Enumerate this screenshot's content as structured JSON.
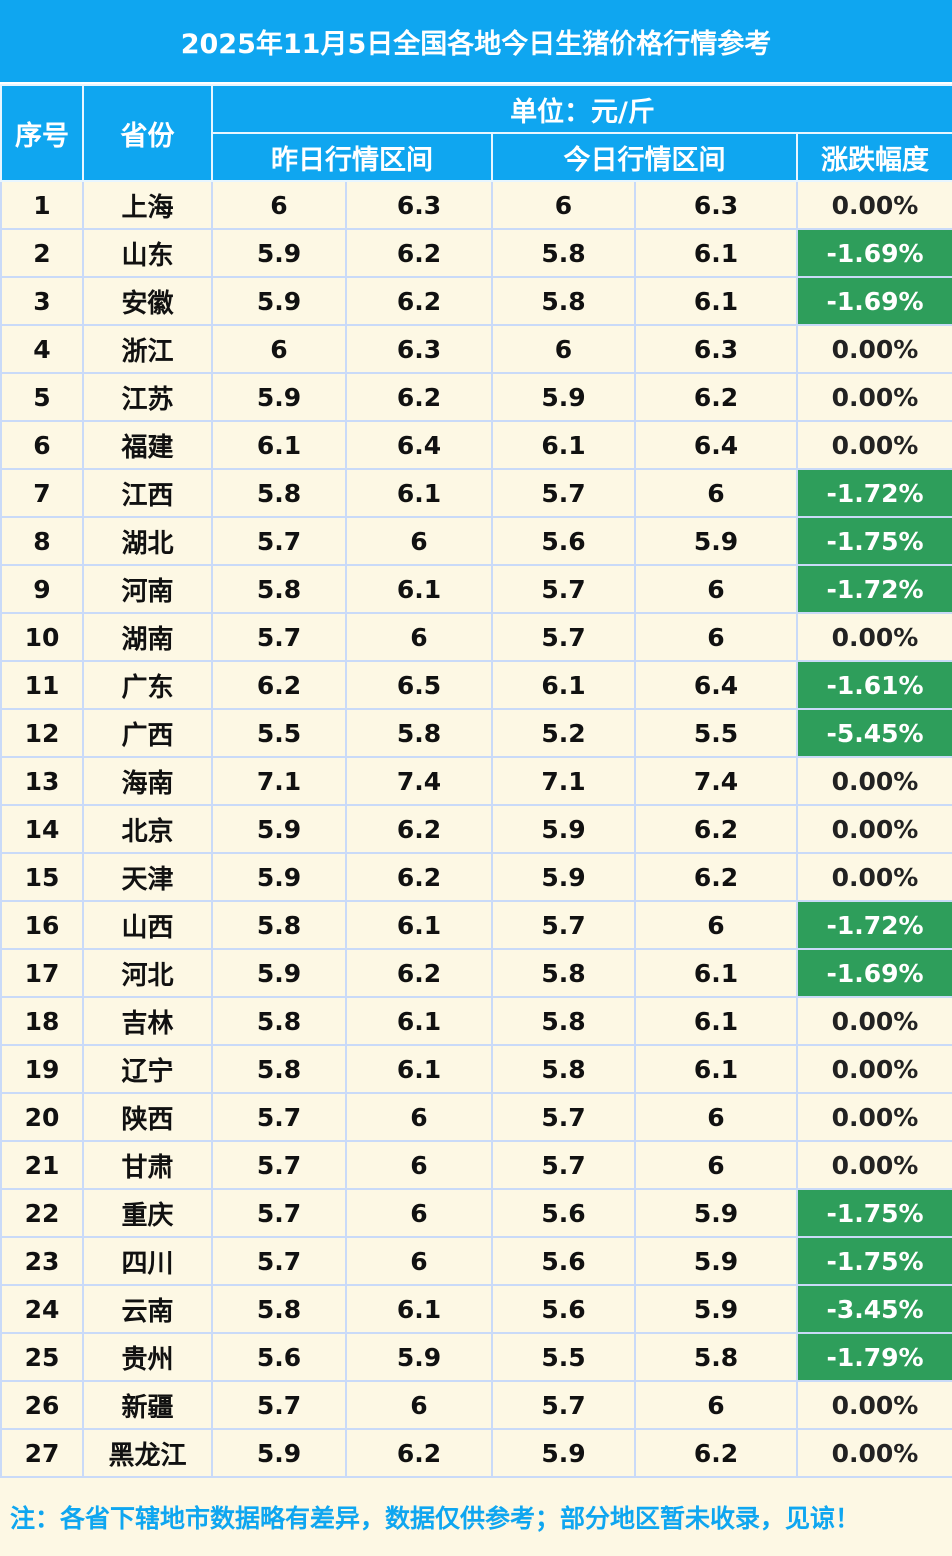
{
  "title": "2025年11月5日全国各地今日生猪价格行情参考",
  "headers": {
    "index": "序号",
    "province": "省份",
    "unit": "单位：元/斤",
    "yesterday": "昨日行情区间",
    "today": "今日行情区间",
    "change": "涨跌幅度"
  },
  "rows": [
    {
      "no": "1",
      "province": "上海",
      "y_low": "6",
      "y_high": "6.3",
      "t_low": "6",
      "t_high": "6.3",
      "change": "0.00%"
    },
    {
      "no": "2",
      "province": "山东",
      "y_low": "5.9",
      "y_high": "6.2",
      "t_low": "5.8",
      "t_high": "6.1",
      "change": "-1.69%"
    },
    {
      "no": "3",
      "province": "安徽",
      "y_low": "5.9",
      "y_high": "6.2",
      "t_low": "5.8",
      "t_high": "6.1",
      "change": "-1.69%"
    },
    {
      "no": "4",
      "province": "浙江",
      "y_low": "6",
      "y_high": "6.3",
      "t_low": "6",
      "t_high": "6.3",
      "change": "0.00%"
    },
    {
      "no": "5",
      "province": "江苏",
      "y_low": "5.9",
      "y_high": "6.2",
      "t_low": "5.9",
      "t_high": "6.2",
      "change": "0.00%"
    },
    {
      "no": "6",
      "province": "福建",
      "y_low": "6.1",
      "y_high": "6.4",
      "t_low": "6.1",
      "t_high": "6.4",
      "change": "0.00%"
    },
    {
      "no": "7",
      "province": "江西",
      "y_low": "5.8",
      "y_high": "6.1",
      "t_low": "5.7",
      "t_high": "6",
      "change": "-1.72%"
    },
    {
      "no": "8",
      "province": "湖北",
      "y_low": "5.7",
      "y_high": "6",
      "t_low": "5.6",
      "t_high": "5.9",
      "change": "-1.75%"
    },
    {
      "no": "9",
      "province": "河南",
      "y_low": "5.8",
      "y_high": "6.1",
      "t_low": "5.7",
      "t_high": "6",
      "change": "-1.72%"
    },
    {
      "no": "10",
      "province": "湖南",
      "y_low": "5.7",
      "y_high": "6",
      "t_low": "5.7",
      "t_high": "6",
      "change": "0.00%"
    },
    {
      "no": "11",
      "province": "广东",
      "y_low": "6.2",
      "y_high": "6.5",
      "t_low": "6.1",
      "t_high": "6.4",
      "change": "-1.61%"
    },
    {
      "no": "12",
      "province": "广西",
      "y_low": "5.5",
      "y_high": "5.8",
      "t_low": "5.2",
      "t_high": "5.5",
      "change": "-5.45%"
    },
    {
      "no": "13",
      "province": "海南",
      "y_low": "7.1",
      "y_high": "7.4",
      "t_low": "7.1",
      "t_high": "7.4",
      "change": "0.00%"
    },
    {
      "no": "14",
      "province": "北京",
      "y_low": "5.9",
      "y_high": "6.2",
      "t_low": "5.9",
      "t_high": "6.2",
      "change": "0.00%"
    },
    {
      "no": "15",
      "province": "天津",
      "y_low": "5.9",
      "y_high": "6.2",
      "t_low": "5.9",
      "t_high": "6.2",
      "change": "0.00%"
    },
    {
      "no": "16",
      "province": "山西",
      "y_low": "5.8",
      "y_high": "6.1",
      "t_low": "5.7",
      "t_high": "6",
      "change": "-1.72%"
    },
    {
      "no": "17",
      "province": "河北",
      "y_low": "5.9",
      "y_high": "6.2",
      "t_low": "5.8",
      "t_high": "6.1",
      "change": "-1.69%"
    },
    {
      "no": "18",
      "province": "吉林",
      "y_low": "5.8",
      "y_high": "6.1",
      "t_low": "5.8",
      "t_high": "6.1",
      "change": "0.00%"
    },
    {
      "no": "19",
      "province": "辽宁",
      "y_low": "5.8",
      "y_high": "6.1",
      "t_low": "5.8",
      "t_high": "6.1",
      "change": "0.00%"
    },
    {
      "no": "20",
      "province": "陕西",
      "y_low": "5.7",
      "y_high": "6",
      "t_low": "5.7",
      "t_high": "6",
      "change": "0.00%"
    },
    {
      "no": "21",
      "province": "甘肃",
      "y_low": "5.7",
      "y_high": "6",
      "t_low": "5.7",
      "t_high": "6",
      "change": "0.00%"
    },
    {
      "no": "22",
      "province": "重庆",
      "y_low": "5.7",
      "y_high": "6",
      "t_low": "5.6",
      "t_high": "5.9",
      "change": "-1.75%"
    },
    {
      "no": "23",
      "province": "四川",
      "y_low": "5.7",
      "y_high": "6",
      "t_low": "5.6",
      "t_high": "5.9",
      "change": "-1.75%"
    },
    {
      "no": "24",
      "province": "云南",
      "y_low": "5.8",
      "y_high": "6.1",
      "t_low": "5.6",
      "t_high": "5.9",
      "change": "-3.45%"
    },
    {
      "no": "25",
      "province": "贵州",
      "y_low": "5.6",
      "y_high": "5.9",
      "t_low": "5.5",
      "t_high": "5.8",
      "change": "-1.79%"
    },
    {
      "no": "26",
      "province": "新疆",
      "y_low": "5.7",
      "y_high": "6",
      "t_low": "5.7",
      "t_high": "6",
      "change": "0.00%"
    },
    {
      "no": "27",
      "province": "黑龙江",
      "y_low": "5.9",
      "y_high": "6.2",
      "t_low": "5.9",
      "t_high": "6.2",
      "change": "0.00%"
    }
  ],
  "colors": {
    "header_bg": "#0FA6F0",
    "down_bg": "#2E9E5B",
    "page_bg": "#FDF8E4"
  },
  "note": "注：各省下辖地市数据略有差异，数据仅供参考；部分地区暂未收录，见谅！"
}
